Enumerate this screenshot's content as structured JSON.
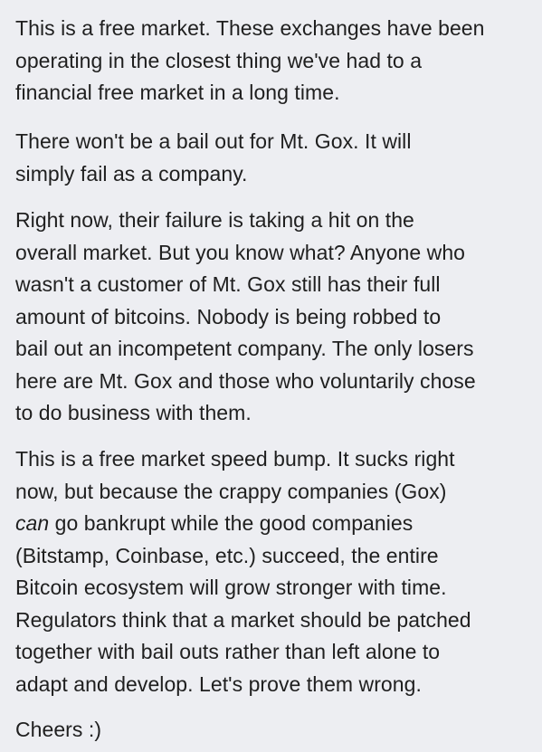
{
  "post": {
    "paragraphs": [
      {
        "lines": [
          "This is a free market. These exchanges have been",
          "operating in the closest thing we've had to a",
          "financial free market in a long time."
        ]
      },
      {
        "lines": [
          "There won't be a bail out for Mt. Gox. It will",
          "simply fail as a company."
        ]
      },
      {
        "lines": [
          "Right now, their failure is taking a hit on the",
          "overall market. But you know what? Anyone who",
          "wasn't a customer of Mt. Gox still has their full",
          "amount of bitcoins. Nobody is being robbed to",
          "bail out an incompetent company. The only losers",
          "here are Mt. Gox and those who voluntarily chose",
          "to do business with them."
        ]
      },
      {
        "lines": [
          "This is a free market speed bump. It sucks right",
          "now, but because the crappy companies (Gox)",
          {
            "italic": "can",
            "rest": " go bankrupt while the good companies"
          },
          "(Bitstamp, Coinbase, etc.) succeed, the entire",
          "Bitcoin ecosystem will grow stronger with time.",
          "Regulators think that a market should be patched",
          "together with bail outs rather than left alone to",
          "adapt and develop. Let's prove them wrong."
        ]
      },
      {
        "lines": [
          "Cheers :)"
        ]
      }
    ]
  }
}
